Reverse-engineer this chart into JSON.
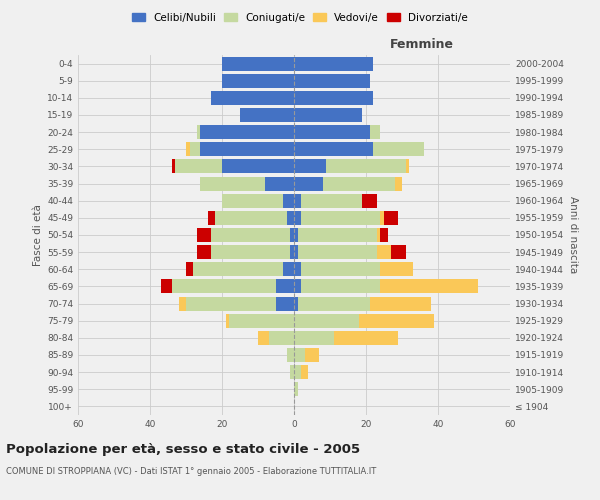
{
  "age_groups": [
    "100+",
    "95-99",
    "90-94",
    "85-89",
    "80-84",
    "75-79",
    "70-74",
    "65-69",
    "60-64",
    "55-59",
    "50-54",
    "45-49",
    "40-44",
    "35-39",
    "30-34",
    "25-29",
    "20-24",
    "15-19",
    "10-14",
    "5-9",
    "0-4"
  ],
  "birth_years": [
    "≤ 1904",
    "1905-1909",
    "1910-1914",
    "1915-1919",
    "1920-1924",
    "1925-1929",
    "1930-1934",
    "1935-1939",
    "1940-1944",
    "1945-1949",
    "1950-1954",
    "1955-1959",
    "1960-1964",
    "1965-1969",
    "1970-1974",
    "1975-1979",
    "1980-1984",
    "1985-1989",
    "1990-1994",
    "1995-1999",
    "2000-2004"
  ],
  "male": {
    "celibi": [
      0,
      0,
      0,
      0,
      0,
      0,
      5,
      5,
      3,
      1,
      1,
      2,
      3,
      8,
      20,
      26,
      26,
      15,
      23,
      20,
      20
    ],
    "coniugati": [
      0,
      0,
      1,
      2,
      7,
      18,
      25,
      29,
      25,
      22,
      22,
      20,
      17,
      18,
      13,
      3,
      1,
      0,
      0,
      0,
      0
    ],
    "vedovi": [
      0,
      0,
      0,
      0,
      3,
      1,
      2,
      0,
      0,
      0,
      0,
      0,
      0,
      0,
      0,
      1,
      0,
      0,
      0,
      0,
      0
    ],
    "divorziati": [
      0,
      0,
      0,
      0,
      0,
      0,
      0,
      3,
      2,
      4,
      4,
      2,
      0,
      0,
      1,
      0,
      0,
      0,
      0,
      0,
      0
    ]
  },
  "female": {
    "nubili": [
      0,
      0,
      0,
      0,
      0,
      0,
      1,
      2,
      2,
      1,
      1,
      2,
      2,
      8,
      9,
      22,
      21,
      19,
      22,
      21,
      22
    ],
    "coniugate": [
      0,
      1,
      2,
      3,
      11,
      18,
      20,
      22,
      22,
      22,
      22,
      22,
      17,
      20,
      22,
      14,
      3,
      0,
      0,
      0,
      0
    ],
    "vedove": [
      0,
      0,
      2,
      4,
      18,
      21,
      17,
      27,
      9,
      4,
      1,
      1,
      0,
      2,
      1,
      0,
      0,
      0,
      0,
      0,
      0
    ],
    "divorziate": [
      0,
      0,
      0,
      0,
      0,
      0,
      0,
      0,
      0,
      4,
      2,
      4,
      4,
      0,
      0,
      0,
      0,
      0,
      0,
      0,
      0
    ]
  },
  "colors": {
    "celibi": "#4472C4",
    "coniugati": "#C5D9A0",
    "vedovi": "#FAC858",
    "divorziati": "#CC0000"
  },
  "xlim": 60,
  "title": "Popolazione per età, sesso e stato civile - 2005",
  "subtitle": "COMUNE DI STROPPIANA (VC) - Dati ISTAT 1° gennaio 2005 - Elaborazione TUTTITALIA.IT",
  "legend_labels": [
    "Celibi/Nubili",
    "Coniugati/e",
    "Vedovi/e",
    "Divorziati/e"
  ],
  "bg_color": "#f0f0f0",
  "grid_color": "#ffffff"
}
